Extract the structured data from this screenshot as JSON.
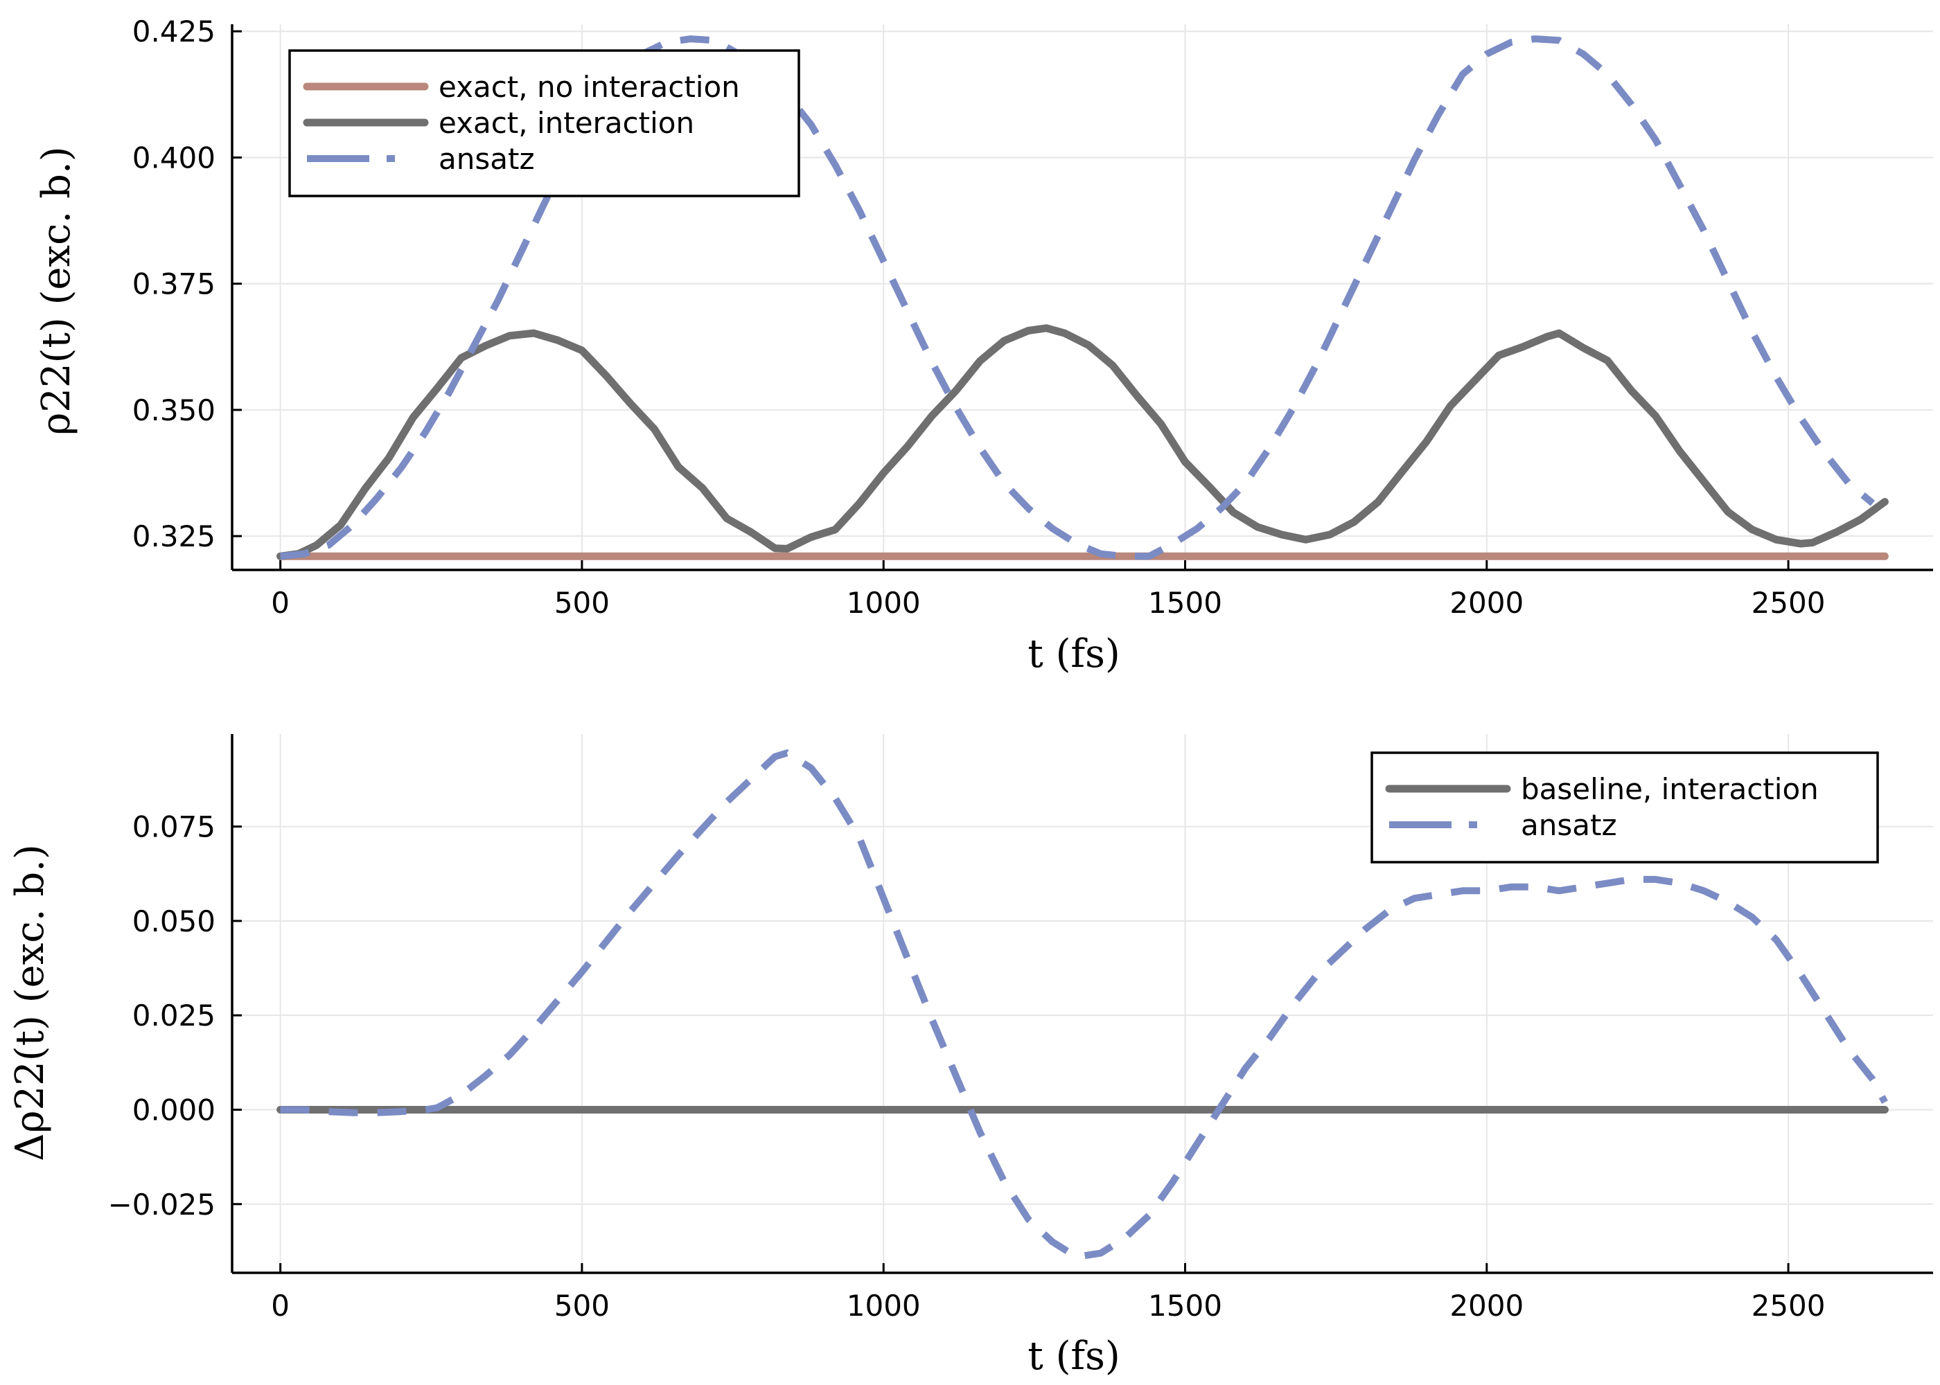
{
  "chart_data": [
    {
      "type": "line",
      "xlabel": "t (fs)",
      "ylabel": "ρ22(t) (exc. b.)",
      "xlim": [
        -80,
        2740
      ],
      "ylim": [
        0.3183,
        0.4264
      ],
      "xticks": [
        0,
        500,
        1000,
        1500,
        2000,
        2500
      ],
      "xtick_labels": [
        "0",
        "500",
        "1000",
        "1500",
        "2000",
        "2500"
      ],
      "yticks": [
        0.325,
        0.35,
        0.375,
        0.4,
        0.425
      ],
      "ytick_labels": [
        "0.325",
        "0.350",
        "0.375",
        "0.400",
        "0.425"
      ],
      "grid": true,
      "legend_position": "top-left",
      "series": [
        {
          "name": "exact, no interaction",
          "color": "#b9877b",
          "style": "solid",
          "x": [
            0,
            2660
          ],
          "y": [
            0.321,
            0.321
          ]
        },
        {
          "name": "exact, interaction",
          "color": "#6f6f6f",
          "style": "solid",
          "x": [
            0,
            30,
            60,
            100,
            140,
            180,
            220,
            260,
            300,
            340,
            380,
            420,
            460,
            500,
            540,
            580,
            620,
            660,
            700,
            740,
            780,
            820,
            840,
            880,
            920,
            960,
            1000,
            1040,
            1080,
            1120,
            1160,
            1200,
            1240,
            1270,
            1300,
            1340,
            1380,
            1420,
            1460,
            1500,
            1540,
            1580,
            1620,
            1660,
            1700,
            1740,
            1780,
            1820,
            1860,
            1900,
            1940,
            1980,
            2020,
            2060,
            2100,
            2120,
            2160,
            2200,
            2240,
            2280,
            2320,
            2360,
            2400,
            2440,
            2480,
            2520,
            2540,
            2580,
            2620,
            2660
          ],
          "y": [
            0.321,
            0.3215,
            0.3232,
            0.3272,
            0.3343,
            0.3405,
            0.3485,
            0.3543,
            0.3603,
            0.3627,
            0.3647,
            0.3652,
            0.3638,
            0.3618,
            0.3568,
            0.3513,
            0.3462,
            0.3387,
            0.3345,
            0.3285,
            0.3258,
            0.3226,
            0.3225,
            0.3248,
            0.3263,
            0.3315,
            0.3375,
            0.3428,
            0.3488,
            0.3538,
            0.3597,
            0.3637,
            0.3657,
            0.3662,
            0.3652,
            0.3628,
            0.3588,
            0.3528,
            0.3472,
            0.3397,
            0.3348,
            0.3297,
            0.3268,
            0.3253,
            0.3243,
            0.3253,
            0.3278,
            0.3318,
            0.3378,
            0.3437,
            0.3508,
            0.3558,
            0.3608,
            0.3625,
            0.3645,
            0.3652,
            0.3623,
            0.3598,
            0.3538,
            0.3488,
            0.3418,
            0.3358,
            0.3298,
            0.3263,
            0.3243,
            0.3235,
            0.3237,
            0.3258,
            0.3283,
            0.3318
          ]
        },
        {
          "name": "ansatz",
          "color": "#7b8bc4",
          "style": "dashed",
          "x": [
            0,
            40,
            80,
            120,
            160,
            200,
            240,
            280,
            320,
            360,
            400,
            440,
            480,
            520,
            560,
            600,
            640,
            680,
            720,
            760,
            800,
            840,
            880,
            920,
            960,
            1000,
            1040,
            1080,
            1120,
            1160,
            1200,
            1240,
            1280,
            1320,
            1360,
            1400,
            1420,
            1440,
            1480,
            1520,
            1560,
            1600,
            1640,
            1680,
            1720,
            1760,
            1800,
            1840,
            1880,
            1920,
            1960,
            2000,
            2040,
            2080,
            2120,
            2160,
            2200,
            2240,
            2280,
            2320,
            2360,
            2400,
            2440,
            2480,
            2520,
            2560,
            2600,
            2640
          ],
          "y": [
            0.321,
            0.3215,
            0.3232,
            0.3272,
            0.3325,
            0.3385,
            0.3455,
            0.3535,
            0.3625,
            0.3715,
            0.3815,
            0.3915,
            0.4015,
            0.4095,
            0.4165,
            0.4205,
            0.4228,
            0.4235,
            0.4232,
            0.4205,
            0.4175,
            0.4125,
            0.4065,
            0.3985,
            0.3895,
            0.3795,
            0.3695,
            0.3595,
            0.3505,
            0.3425,
            0.3355,
            0.3305,
            0.3265,
            0.3235,
            0.3215,
            0.321,
            0.321,
            0.321,
            0.3235,
            0.3265,
            0.3305,
            0.3355,
            0.3425,
            0.3505,
            0.3595,
            0.3695,
            0.3795,
            0.3895,
            0.3995,
            0.4085,
            0.4165,
            0.4205,
            0.4228,
            0.4235,
            0.4232,
            0.4205,
            0.4165,
            0.4105,
            0.4035,
            0.3945,
            0.3855,
            0.3755,
            0.3655,
            0.3565,
            0.3485,
            0.3415,
            0.3355,
            0.3315
          ]
        }
      ]
    },
    {
      "type": "line",
      "xlabel": "t (fs)",
      "ylabel": "Δρ22(t) (exc. b.)",
      "xlim": [
        -80,
        2740
      ],
      "ylim": [
        -0.0432,
        0.0995
      ],
      "xticks": [
        0,
        500,
        1000,
        1500,
        2000,
        2500
      ],
      "xtick_labels": [
        "0",
        "500",
        "1000",
        "1500",
        "2000",
        "2500"
      ],
      "yticks": [
        -0.025,
        0,
        0.025,
        0.05,
        0.075
      ],
      "ytick_labels": [
        "−0.025",
        "0.000",
        "0.025",
        "0.050",
        "0.075"
      ],
      "grid": true,
      "legend_position": "top-right",
      "series": [
        {
          "name": "baseline, interaction",
          "color": "#6f6f6f",
          "style": "solid",
          "x": [
            0,
            2660
          ],
          "y": [
            0,
            0
          ]
        },
        {
          "name": "ansatz",
          "color": "#7b8bc4",
          "style": "dashed",
          "x": [
            0,
            40,
            80,
            120,
            160,
            200,
            240,
            260,
            300,
            340,
            380,
            420,
            460,
            500,
            540,
            580,
            620,
            660,
            700,
            740,
            780,
            820,
            840,
            880,
            920,
            960,
            1000,
            1040,
            1080,
            1120,
            1160,
            1200,
            1240,
            1280,
            1320,
            1360,
            1400,
            1440,
            1480,
            1520,
            1560,
            1600,
            1640,
            1680,
            1720,
            1760,
            1800,
            1840,
            1880,
            1920,
            1960,
            2000,
            2040,
            2080,
            2120,
            2160,
            2200,
            2240,
            2280,
            2320,
            2360,
            2400,
            2440,
            2480,
            2520,
            2560,
            2600,
            2640,
            2660
          ],
          "y": [
            0,
            0,
            -0.0005,
            -0.0008,
            -0.0008,
            -0.0005,
            0,
            0.0005,
            0.004,
            0.009,
            0.0145,
            0.0215,
            0.029,
            0.0365,
            0.0445,
            0.0525,
            0.06,
            0.0675,
            0.0745,
            0.0815,
            0.0875,
            0.0935,
            0.0945,
            0.0905,
            0.0825,
            0.072,
            0.056,
            0.04,
            0.024,
            0.009,
            -0.006,
            -0.019,
            -0.029,
            -0.035,
            -0.039,
            -0.038,
            -0.034,
            -0.028,
            -0.019,
            -0.009,
            0.001,
            0.011,
            0.019,
            0.028,
            0.036,
            0.042,
            0.048,
            0.053,
            0.056,
            0.057,
            0.058,
            0.058,
            0.059,
            0.059,
            0.058,
            0.059,
            0.06,
            0.061,
            0.061,
            0.06,
            0.058,
            0.055,
            0.051,
            0.045,
            0.036,
            0.026,
            0.016,
            0.008,
            0.002
          ]
        }
      ]
    }
  ]
}
